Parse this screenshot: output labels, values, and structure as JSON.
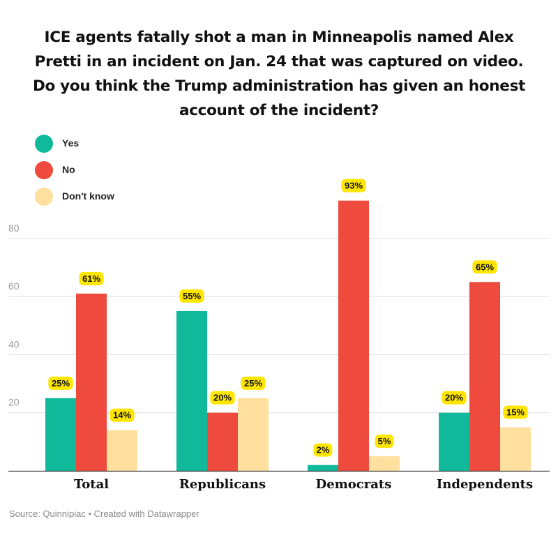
{
  "title": "ICE agents fatally shot a man in Minneapolis named Alex Pretti in an incident on Jan. 24 that was captured on video. Do you think the Trump administration has given an honest account of the incident?",
  "legend": [
    {
      "label": "Yes",
      "color": "#10b99a"
    },
    {
      "label": "No",
      "color": "#ee4b3e"
    },
    {
      "label": "Don't know",
      "color": "#ffe09e"
    }
  ],
  "source": "Source: Quinnipiac • Created with Datawrapper",
  "chart_data": {
    "type": "bar",
    "categories": [
      "Total",
      "Republicans",
      "Democrats",
      "Independents"
    ],
    "series": [
      {
        "name": "Yes",
        "values": [
          25,
          55,
          2,
          20
        ],
        "labels": [
          "25%",
          "55%",
          "2%",
          "20%"
        ],
        "color": "#10b99a"
      },
      {
        "name": "No",
        "values": [
          61,
          20,
          93,
          65
        ],
        "labels": [
          "61%",
          "20%",
          "93%",
          "65%"
        ],
        "color": "#ee4b3e"
      },
      {
        "name": "Don't know",
        "values": [
          14,
          25,
          5,
          15
        ],
        "labels": [
          "14%",
          "25%",
          "5%",
          "15%"
        ],
        "color": "#ffe09e"
      }
    ],
    "yticks": [
      "20",
      "40",
      "60",
      "80"
    ],
    "ytick_values": [
      20,
      40,
      60,
      80
    ],
    "ylim": [
      0,
      100
    ],
    "grid": true,
    "legend_position": "top-left",
    "label_highlight_color": "#ffe600"
  }
}
